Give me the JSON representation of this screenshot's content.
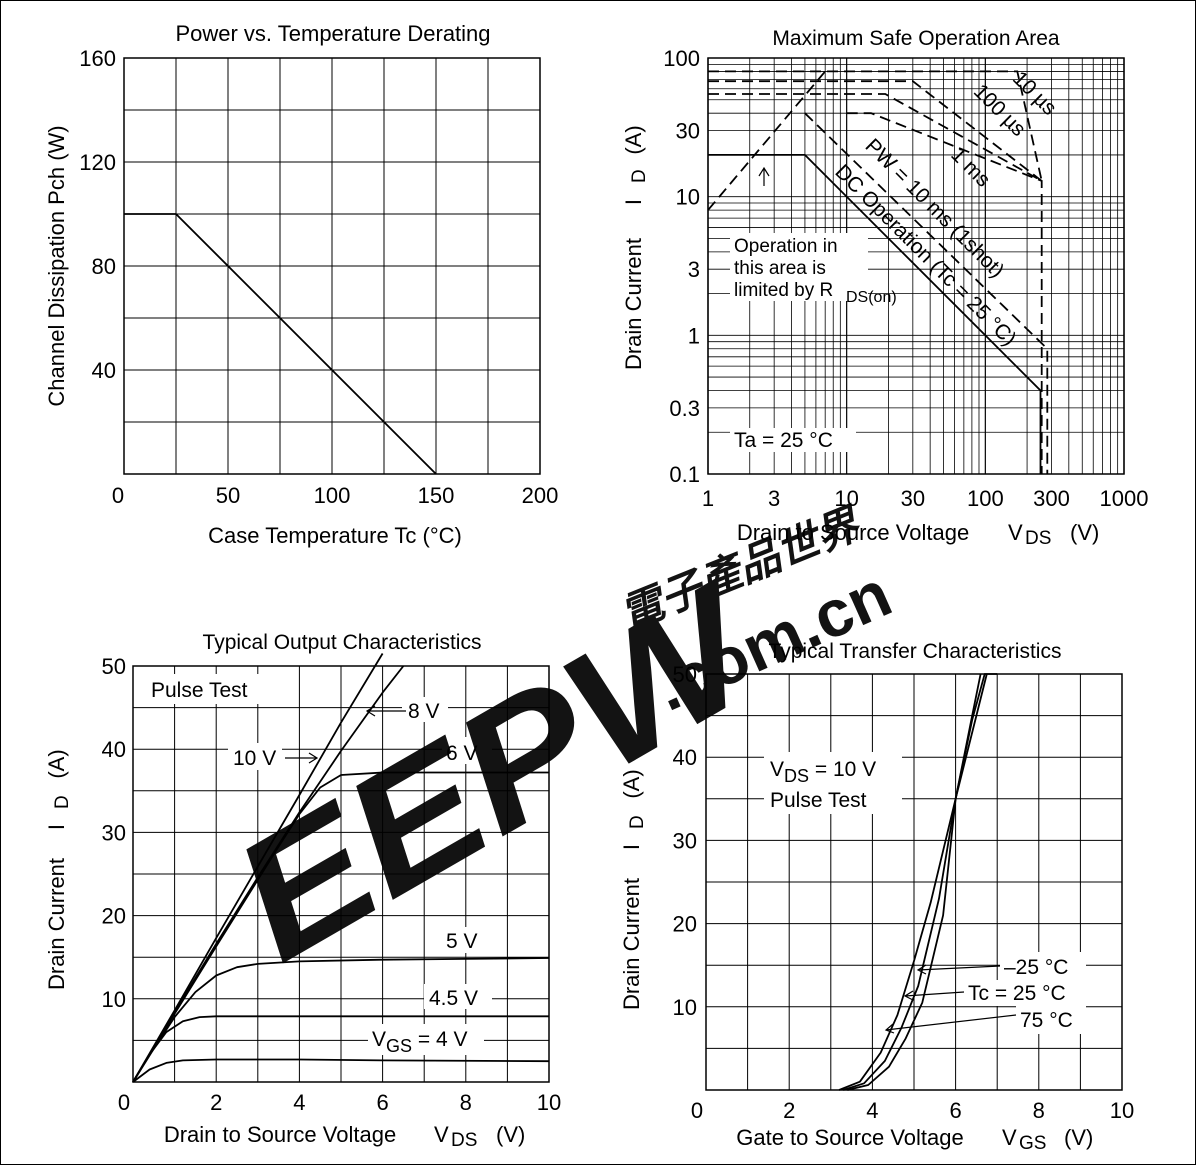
{
  "chart_data": [
    {
      "id": "derating",
      "type": "line",
      "title": "Power vs. Temperature Derating",
      "xlabel": "Case Temperature    Tc  (°C)",
      "ylabel": "Channel Dissipation    Pch  (W)",
      "xlim": [
        0,
        200
      ],
      "ylim": [
        0,
        160
      ],
      "x_ticks": [
        0,
        50,
        100,
        150,
        200
      ],
      "y_ticks": [
        40,
        80,
        120,
        160
      ],
      "grid": true,
      "series": [
        {
          "x": [
            0,
            25,
            150
          ],
          "y": [
            100,
            100,
            0
          ]
        }
      ]
    },
    {
      "id": "soa",
      "type": "line",
      "title": "Maximum Safe Operation Area",
      "xlabel": "Drain to Source Voltage",
      "xlabel_symbol": "V",
      "xlabel_sub": "DS",
      "xlabel_unit": "(V)",
      "ylabel": "Drain Current",
      "ylabel_symbol": "I",
      "ylabel_sub": "D",
      "ylabel_unit": "(A)",
      "xscale": "log",
      "yscale": "log",
      "xlim": [
        1,
        1000
      ],
      "ylim": [
        0.1,
        100
      ],
      "x_ticks": [
        "1",
        "3",
        "10",
        "30",
        "100",
        "300",
        "1000"
      ],
      "y_ticks": [
        "0.1",
        "0.3",
        "1",
        "3",
        "10",
        "30",
        "100"
      ],
      "grid": true,
      "series": [
        {
          "label": "DC Operation (Tc = 25 °C)",
          "style": "solid",
          "x": [
            1,
            5,
            250,
            250
          ],
          "y": [
            20,
            20,
            0.4,
            0.1
          ]
        },
        {
          "label": "PW = 10 ms (1shot)",
          "style": "dash",
          "x": [
            5,
            280,
            280
          ],
          "y": [
            40,
            0.8,
            0.1
          ]
        },
        {
          "label": "1 ms",
          "style": "dash",
          "x": [
            10,
            15,
            255,
            255
          ],
          "y": [
            40,
            40,
            13,
            0.1
          ]
        },
        {
          "label": "100 µs",
          "style": "dash",
          "x": [
            1,
            19,
            255
          ],
          "y": [
            55,
            55,
            13
          ]
        },
        {
          "label": "10 µs",
          "style": "dash",
          "x": [
            1,
            30,
            255
          ],
          "y": [
            68,
            68,
            13
          ]
        },
        {
          "label": "",
          "style": "dash",
          "x": [
            1,
            10,
            170,
            255
          ],
          "y": [
            80,
            80,
            80,
            13
          ]
        },
        {
          "label": "RDS(on) limit",
          "style": "dash",
          "x": [
            1,
            7
          ],
          "y": [
            8,
            80
          ]
        }
      ],
      "labels": [
        "10 µs",
        "100 µs",
        "1 ms",
        "PW = 10 ms (1shot)",
        "DC Operation (Tc = 25 °C)"
      ],
      "annotations": [
        "Operation in",
        "this area is",
        "limited by R",
        "DS(on)",
        "Ta = 25 °C"
      ]
    },
    {
      "id": "output",
      "type": "line",
      "title": "Typical Output Characteristics",
      "xlabel": "Drain to Source Voltage",
      "xlabel_symbol": "V",
      "xlabel_sub": "DS",
      "xlabel_unit": "(V)",
      "ylabel": "Drain Current",
      "ylabel_symbol": "I",
      "ylabel_sub": "D",
      "ylabel_unit": "(A)",
      "xlim": [
        0,
        10
      ],
      "ylim": [
        0,
        50
      ],
      "x_ticks": [
        0,
        2,
        4,
        6,
        8,
        10
      ],
      "y_ticks": [
        10,
        20,
        30,
        40,
        50
      ],
      "grid": true,
      "annotation": "Pulse Test",
      "series": [
        {
          "label": "10 V",
          "x": [
            0,
            1,
            2,
            3,
            4,
            5,
            6
          ],
          "y": [
            0,
            8.6,
            17.3,
            25.9,
            34.5,
            43.2,
            51.8
          ]
        },
        {
          "label": "8 V",
          "x": [
            0,
            1,
            2,
            3,
            4,
            5,
            6,
            6.5
          ],
          "y": [
            0,
            8.4,
            16.6,
            24.6,
            32.4,
            39.8,
            46.8,
            50.0
          ]
        },
        {
          "label": "6 V",
          "x": [
            0,
            1,
            2,
            3,
            3.5,
            4,
            4.5,
            5,
            6,
            8,
            10
          ],
          "y": [
            0,
            8.2,
            16.3,
            24.3,
            28.3,
            32.2,
            35.4,
            36.9,
            37.2,
            37.2,
            37.2
          ]
        },
        {
          "label": "5 V",
          "x": [
            0,
            0.5,
            1,
            1.5,
            2,
            2.5,
            3,
            4,
            6,
            8,
            10
          ],
          "y": [
            0,
            4,
            7.8,
            10.8,
            12.8,
            13.8,
            14.2,
            14.5,
            14.7,
            14.8,
            14.9
          ]
        },
        {
          "label": "4.5 V",
          "x": [
            0,
            0.4,
            0.8,
            1.2,
            1.6,
            2,
            3,
            6,
            10
          ],
          "y": [
            0,
            3.3,
            6,
            7.3,
            7.8,
            7.9,
            7.9,
            7.9,
            7.9
          ]
        },
        {
          "label": "V_GS = 4 V",
          "x": [
            0,
            0.4,
            0.8,
            1.2,
            2,
            4,
            6,
            10
          ],
          "y": [
            0,
            1.5,
            2.3,
            2.6,
            2.7,
            2.7,
            2.6,
            2.5
          ]
        }
      ]
    },
    {
      "id": "transfer",
      "type": "line",
      "title": "Typical Transfer Characteristics",
      "xlabel": "Gate to Source Voltage",
      "xlabel_symbol": "V",
      "xlabel_sub": "GS",
      "xlabel_unit": "(V)",
      "ylabel": "Drain Current",
      "ylabel_symbol": "I",
      "ylabel_sub": "D",
      "ylabel_unit": "(A)",
      "xlim": [
        0,
        10
      ],
      "ylim": [
        0,
        50
      ],
      "x_ticks": [
        0,
        2,
        4,
        6,
        8,
        10
      ],
      "y_ticks": [
        10,
        20,
        30,
        40,
        50
      ],
      "grid": true,
      "annotations": [
        "V_DS = 10 V",
        "Pulse Test"
      ],
      "series": [
        {
          "label": "-25 °C",
          "x": [
            3.2,
            3.7,
            4.2,
            4.6,
            5,
            5.4,
            6,
            6.4,
            6.6
          ],
          "y": [
            0,
            1,
            4.5,
            9,
            15.5,
            22.5,
            35,
            45,
            50
          ]
        },
        {
          "label": "Tc = 25 °C",
          "x": [
            3.3,
            3.8,
            4.3,
            4.7,
            5.1,
            5.6,
            6,
            6.5,
            6.75
          ],
          "y": [
            0,
            0.8,
            3.5,
            7.5,
            12.5,
            23,
            35,
            45,
            50
          ]
        },
        {
          "label": "75 °C",
          "x": [
            3.4,
            3.9,
            4.4,
            4.8,
            5.2,
            5.7,
            6,
            6.4,
            6.7,
            7.0
          ],
          "y": [
            0,
            0.6,
            2.8,
            6.2,
            10.5,
            21,
            35,
            44.5,
            50,
            50
          ]
        }
      ],
      "curve_labels": [
        "–25 °C",
        "Tc = 25 °C",
        "75 °C"
      ]
    }
  ],
  "watermark": {
    "brand": "EEPW",
    "site": ".com.cn",
    "chinese": "電子產品世界",
    "color": "#e1322e"
  }
}
